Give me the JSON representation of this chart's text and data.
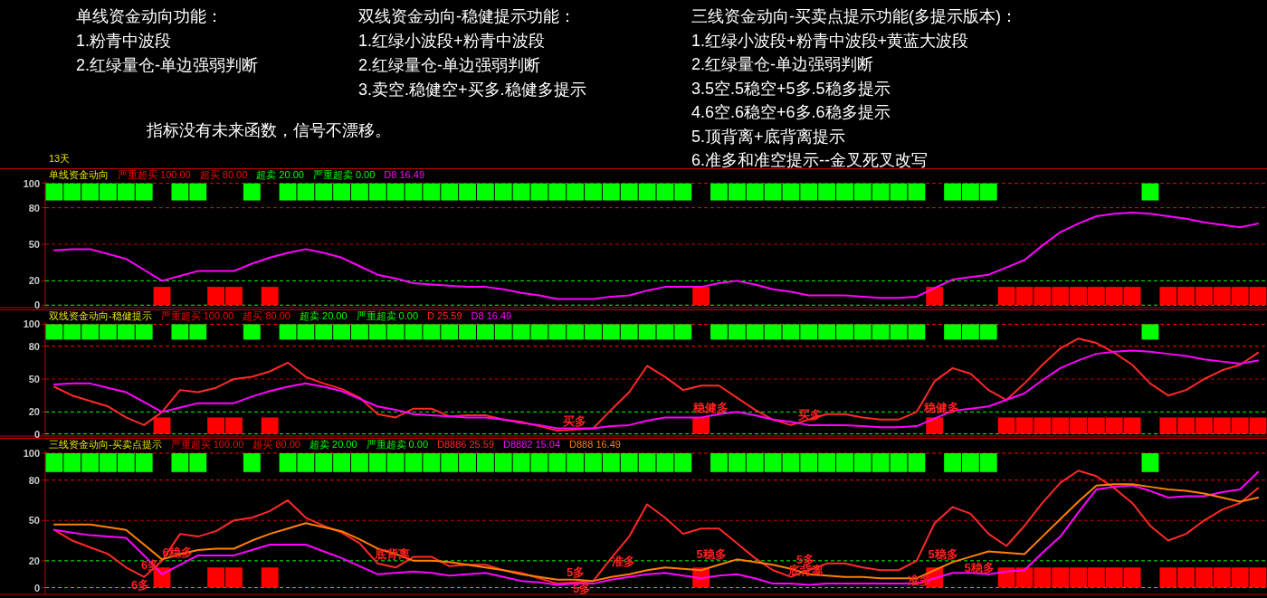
{
  "chart_data": [
    {
      "type": "other",
      "title": "单线资金动向功能：",
      "annotations": [
        "1.粉青中波段",
        "2.红绿量仓-单边强弱判断"
      ]
    },
    {
      "type": "other",
      "title": "双线资金动向-稳健提示功能：",
      "annotations": [
        "1.红绿小波段+粉青中波段",
        "2.红绿量仓-单边强弱判断",
        "3.卖空.稳健空+买多.稳健多提示"
      ]
    },
    {
      "type": "other",
      "title": "三线资金动向-买卖点提示功能(多提示版本)：",
      "annotations": [
        "1.红绿小波段+粉青中波段+黄蓝大波段",
        "2.红绿量仓-单边强弱判断",
        "3.5空.5稳空+5多.5稳多提示",
        "4.6空.6稳空+6多.6稳多提示",
        "5.顶背离+底背离提示",
        "6.准多和准空提示--金叉死叉改写"
      ]
    },
    {
      "type": "other",
      "annotations": [
        "指标没有未来函数，信号不漂移。"
      ]
    },
    {
      "type": "other",
      "annotations": [
        "13天"
      ]
    },
    {
      "type": "line",
      "title": "单线资金动向",
      "categories": [
        null,
        null,
        null,
        null,
        null,
        null,
        null,
        null,
        null,
        null,
        null,
        null,
        null,
        null,
        null,
        null,
        null,
        null,
        null,
        null,
        null,
        null,
        null,
        null,
        null,
        null,
        null,
        null,
        null,
        null,
        null,
        null,
        null,
        null,
        null,
        null,
        null,
        null,
        null,
        null,
        null,
        null,
        null,
        null,
        null,
        null,
        null,
        null,
        null,
        null,
        null,
        null,
        null,
        null,
        null,
        null,
        null,
        null,
        null,
        null,
        null,
        null,
        null,
        null,
        null,
        null,
        null,
        null
      ],
      "ylim": [
        -2,
        102
      ],
      "yticks": [
        0,
        20,
        50,
        80,
        100
      ],
      "ref_lines": [
        {
          "axis": "y",
          "value": 100,
          "label": "严重超买 100.00",
          "color": "#ff0000",
          "line_style": "dashed"
        },
        {
          "axis": "y",
          "value": 80,
          "label": "超买 80.00",
          "color": "#ff0000",
          "line_style": "dashed"
        },
        {
          "axis": "y",
          "value": 20,
          "label": "超卖 20.00",
          "color": "#00ff00",
          "line_style": "dashed"
        },
        {
          "axis": "y",
          "value": 0,
          "label": "严重超卖 0.00",
          "color": "#00ff00",
          "line_style": "dashed"
        },
        {
          "axis": "y",
          "value": 50,
          "color": "#c00000",
          "line_style": "dashed"
        }
      ],
      "series": [
        {
          "type": "bar",
          "color": "#00ff00",
          "values": [
            14,
            14,
            14,
            14,
            14,
            14,
            null,
            14,
            14,
            null,
            null,
            14,
            null,
            14,
            14,
            14,
            14,
            14,
            14,
            14,
            14,
            14,
            14,
            14,
            14,
            14,
            14,
            14,
            14,
            14,
            14,
            14,
            14,
            14,
            14,
            14,
            null,
            14,
            14,
            14,
            14,
            14,
            14,
            14,
            14,
            14,
            14,
            14,
            14,
            null,
            14,
            14,
            14,
            null,
            null,
            null,
            null,
            null,
            null,
            null,
            null,
            14,
            null,
            null,
            null,
            null,
            null,
            null
          ],
          "base": [
            86,
            86,
            86,
            86,
            86,
            86,
            null,
            86,
            86,
            null,
            null,
            86,
            null,
            86,
            86,
            86,
            86,
            86,
            86,
            86,
            86,
            86,
            86,
            86,
            86,
            86,
            86,
            86,
            86,
            86,
            86,
            86,
            86,
            86,
            86,
            86,
            null,
            86,
            86,
            86,
            86,
            86,
            86,
            86,
            86,
            86,
            86,
            86,
            86,
            null,
            86,
            86,
            86,
            null,
            null,
            null,
            null,
            null,
            null,
            null,
            null,
            86,
            null,
            null,
            null,
            null,
            null,
            null
          ]
        },
        {
          "type": "bar",
          "color": "#ff0000",
          "values": [
            null,
            null,
            null,
            null,
            null,
            null,
            15,
            null,
            null,
            15,
            15,
            null,
            15,
            null,
            null,
            null,
            null,
            null,
            null,
            null,
            null,
            null,
            null,
            null,
            null,
            null,
            null,
            null,
            null,
            null,
            null,
            null,
            null,
            null,
            null,
            null,
            15,
            null,
            null,
            null,
            null,
            null,
            null,
            null,
            null,
            null,
            null,
            null,
            null,
            15,
            null,
            null,
            null,
            15,
            15,
            15,
            15,
            15,
            15,
            15,
            15,
            null,
            15,
            15,
            15,
            15,
            15,
            15
          ],
          "base": [
            null,
            null,
            null,
            null,
            null,
            null,
            0,
            null,
            null,
            0,
            0,
            null,
            0,
            null,
            null,
            null,
            null,
            null,
            null,
            null,
            null,
            null,
            null,
            null,
            null,
            null,
            null,
            null,
            null,
            null,
            null,
            null,
            null,
            null,
            null,
            null,
            0,
            null,
            null,
            null,
            null,
            null,
            null,
            null,
            null,
            null,
            null,
            null,
            null,
            0,
            null,
            null,
            null,
            0,
            0,
            0,
            0,
            0,
            0,
            0,
            0,
            null,
            0,
            0,
            0,
            0,
            0,
            0
          ]
        },
        {
          "name": "D8 16.49",
          "color": "#ff00ff",
          "values": [
            45,
            46,
            46,
            42,
            38,
            29,
            20,
            24,
            28,
            28,
            28,
            34,
            39,
            43,
            46,
            43,
            39,
            32,
            25,
            22,
            18,
            17,
            16,
            15,
            15,
            13,
            10,
            8,
            5,
            5,
            5,
            7,
            8,
            12,
            15,
            15,
            15,
            18,
            20,
            17,
            13,
            11,
            8,
            8,
            8,
            7,
            6,
            6,
            7,
            14,
            21,
            23,
            25,
            31,
            37,
            49,
            60,
            67,
            73,
            75,
            76,
            75,
            73,
            71,
            68,
            66,
            64,
            67
          ]
        }
      ]
    },
    {
      "type": "line",
      "title": "双线资金动向-稳健提示",
      "annotations": [
        "买多",
        "稳健多",
        "买多",
        "稳健多"
      ],
      "categories": [
        null,
        null,
        null,
        null,
        null,
        null,
        null,
        null,
        null,
        null,
        null,
        null,
        null,
        null,
        null,
        null,
        null,
        null,
        null,
        null,
        null,
        null,
        null,
        null,
        null,
        null,
        null,
        null,
        null,
        null,
        null,
        null,
        null,
        null,
        null,
        null,
        null,
        null,
        null,
        null,
        null,
        null,
        null,
        null,
        null,
        null,
        null,
        null,
        null,
        null,
        null,
        null,
        null,
        null,
        null,
        null,
        null,
        null,
        null,
        null,
        null,
        null,
        null,
        null,
        null,
        null,
        null,
        null
      ],
      "ylim": [
        -2,
        102
      ],
      "yticks": [
        0,
        20,
        50,
        80,
        100
      ],
      "ref_lines": [
        {
          "axis": "y",
          "value": 100,
          "label": "严重超买 100.00",
          "color": "#ff0000",
          "line_style": "dashed"
        },
        {
          "axis": "y",
          "value": 80,
          "label": "超买 80.00",
          "color": "#ff0000",
          "line_style": "dashed"
        },
        {
          "axis": "y",
          "value": 20,
          "label": "超卖 20.00",
          "color": "#00ff00",
          "line_style": "dashed"
        },
        {
          "axis": "y",
          "value": 0,
          "label": "严重超卖 0.00",
          "color": "#00ff00",
          "line_style": "dashed"
        },
        {
          "axis": "y",
          "value": 50,
          "color": "#c00000",
          "line_style": "dashed"
        }
      ],
      "series": [
        {
          "type": "bar",
          "color": "#00ff00",
          "values": [
            14,
            14,
            14,
            14,
            14,
            14,
            null,
            14,
            14,
            null,
            null,
            14,
            null,
            14,
            14,
            14,
            14,
            14,
            14,
            14,
            14,
            14,
            14,
            14,
            14,
            14,
            14,
            14,
            14,
            14,
            14,
            14,
            14,
            14,
            14,
            14,
            null,
            14,
            14,
            14,
            14,
            14,
            14,
            14,
            14,
            14,
            14,
            14,
            14,
            null,
            14,
            14,
            14,
            null,
            null,
            null,
            null,
            null,
            null,
            null,
            null,
            14,
            null,
            null,
            null,
            null,
            null,
            null
          ],
          "base": [
            86,
            86,
            86,
            86,
            86,
            86,
            null,
            86,
            86,
            null,
            null,
            86,
            null,
            86,
            86,
            86,
            86,
            86,
            86,
            86,
            86,
            86,
            86,
            86,
            86,
            86,
            86,
            86,
            86,
            86,
            86,
            86,
            86,
            86,
            86,
            86,
            null,
            86,
            86,
            86,
            86,
            86,
            86,
            86,
            86,
            86,
            86,
            86,
            86,
            null,
            86,
            86,
            86,
            null,
            null,
            null,
            null,
            null,
            null,
            null,
            null,
            86,
            null,
            null,
            null,
            null,
            null,
            null
          ]
        },
        {
          "type": "bar",
          "color": "#ff0000",
          "values": [
            null,
            null,
            null,
            null,
            null,
            null,
            15,
            null,
            null,
            15,
            15,
            null,
            15,
            null,
            null,
            null,
            null,
            null,
            null,
            null,
            null,
            null,
            null,
            null,
            null,
            null,
            null,
            null,
            null,
            null,
            null,
            null,
            null,
            null,
            null,
            null,
            15,
            null,
            null,
            null,
            null,
            null,
            null,
            null,
            null,
            null,
            null,
            null,
            null,
            15,
            null,
            null,
            null,
            15,
            15,
            15,
            15,
            15,
            15,
            15,
            15,
            null,
            15,
            15,
            15,
            15,
            15,
            15
          ],
          "base": [
            null,
            null,
            null,
            null,
            null,
            null,
            0,
            null,
            null,
            0,
            0,
            null,
            0,
            null,
            null,
            null,
            null,
            null,
            null,
            null,
            null,
            null,
            null,
            null,
            null,
            null,
            null,
            null,
            null,
            null,
            null,
            null,
            null,
            null,
            null,
            null,
            0,
            null,
            null,
            null,
            null,
            null,
            null,
            null,
            null,
            null,
            null,
            null,
            null,
            0,
            null,
            null,
            null,
            0,
            0,
            0,
            0,
            0,
            0,
            0,
            0,
            null,
            0,
            0,
            0,
            0,
            0,
            0
          ]
        },
        {
          "name": "D 25.59",
          "color": "#ff2828",
          "values": [
            43,
            35,
            30,
            25,
            15,
            8,
            20,
            40,
            38,
            42,
            50,
            52,
            57,
            65,
            52,
            46,
            41,
            33,
            18,
            15,
            23,
            23,
            16,
            17,
            17,
            13,
            11,
            7,
            3,
            4,
            5,
            22,
            38,
            62,
            52,
            40,
            44,
            44,
            33,
            22,
            13,
            8,
            13,
            18,
            18,
            15,
            13,
            13,
            20,
            48,
            60,
            55,
            40,
            31,
            46,
            63,
            78,
            87,
            83,
            74,
            63,
            46,
            35,
            40,
            50,
            58,
            63,
            74
          ]
        },
        {
          "name": "D8 16.49",
          "color": "#ff00ff",
          "values": [
            45,
            46,
            46,
            42,
            38,
            29,
            20,
            24,
            28,
            28,
            28,
            34,
            39,
            43,
            46,
            43,
            39,
            32,
            25,
            22,
            18,
            17,
            16,
            15,
            15,
            13,
            10,
            8,
            5,
            5,
            5,
            7,
            8,
            12,
            15,
            15,
            15,
            18,
            20,
            17,
            13,
            11,
            8,
            8,
            8,
            7,
            6,
            6,
            7,
            14,
            21,
            23,
            25,
            31,
            37,
            49,
            60,
            67,
            73,
            75,
            76,
            75,
            73,
            71,
            68,
            66,
            64,
            67
          ]
        }
      ]
    },
    {
      "type": "line",
      "title": "三线资金动向-买卖点提示",
      "annotations": [
        "6多",
        "6稳多",
        "6多",
        "底背离",
        "5多",
        "5多",
        "准多",
        "5稳多",
        "5多",
        "底背离",
        "5稳多",
        "准多",
        "5稳多"
      ],
      "categories": [
        null,
        null,
        null,
        null,
        null,
        null,
        null,
        null,
        null,
        null,
        null,
        null,
        null,
        null,
        null,
        null,
        null,
        null,
        null,
        null,
        null,
        null,
        null,
        null,
        null,
        null,
        null,
        null,
        null,
        null,
        null,
        null,
        null,
        null,
        null,
        null,
        null,
        null,
        null,
        null,
        null,
        null,
        null,
        null,
        null,
        null,
        null,
        null,
        null,
        null,
        null,
        null,
        null,
        null,
        null,
        null,
        null,
        null,
        null,
        null,
        null,
        null,
        null,
        null,
        null,
        null,
        null,
        null
      ],
      "ylim": [
        -5,
        102
      ],
      "yticks": [
        0,
        20,
        50,
        80,
        100
      ],
      "ref_lines": [
        {
          "axis": "y",
          "value": 100,
          "label": "严重超买 100.00",
          "color": "#ff0000",
          "line_style": "dashed"
        },
        {
          "axis": "y",
          "value": 80,
          "label": "超买 80.00",
          "color": "#ff0000",
          "line_style": "dashed"
        },
        {
          "axis": "y",
          "value": 20,
          "label": "超卖 20.00",
          "color": "#00ff00",
          "line_style": "dashed"
        },
        {
          "axis": "y",
          "value": 0,
          "label": "严重超卖 0.00",
          "color": "#00ff00",
          "line_style": "dashed"
        },
        {
          "axis": "y",
          "value": 50,
          "color": "#c00000",
          "line_style": "dashed"
        }
      ],
      "series": [
        {
          "type": "bar",
          "color": "#00ff00",
          "values": [
            14,
            14,
            14,
            14,
            14,
            14,
            null,
            14,
            14,
            null,
            null,
            14,
            null,
            14,
            14,
            14,
            14,
            14,
            14,
            14,
            14,
            14,
            14,
            14,
            14,
            14,
            14,
            14,
            14,
            14,
            14,
            14,
            14,
            14,
            14,
            14,
            null,
            14,
            14,
            14,
            14,
            14,
            14,
            14,
            14,
            14,
            14,
            14,
            14,
            null,
            14,
            14,
            14,
            null,
            null,
            null,
            null,
            null,
            null,
            null,
            null,
            14,
            null,
            null,
            null,
            null,
            null,
            null
          ],
          "base": [
            86,
            86,
            86,
            86,
            86,
            86,
            null,
            86,
            86,
            null,
            null,
            86,
            null,
            86,
            86,
            86,
            86,
            86,
            86,
            86,
            86,
            86,
            86,
            86,
            86,
            86,
            86,
            86,
            86,
            86,
            86,
            86,
            86,
            86,
            86,
            86,
            null,
            86,
            86,
            86,
            86,
            86,
            86,
            86,
            86,
            86,
            86,
            86,
            86,
            null,
            86,
            86,
            86,
            null,
            null,
            null,
            null,
            null,
            null,
            null,
            null,
            86,
            null,
            null,
            null,
            null,
            null,
            null
          ]
        },
        {
          "type": "bar",
          "color": "#ff0000",
          "values": [
            null,
            null,
            null,
            null,
            null,
            null,
            15,
            null,
            null,
            15,
            15,
            null,
            15,
            null,
            null,
            null,
            null,
            null,
            null,
            null,
            null,
            null,
            null,
            null,
            null,
            null,
            null,
            null,
            null,
            null,
            null,
            null,
            null,
            null,
            null,
            null,
            15,
            null,
            null,
            null,
            null,
            null,
            null,
            null,
            null,
            null,
            null,
            null,
            null,
            15,
            null,
            null,
            null,
            15,
            15,
            15,
            15,
            15,
            15,
            15,
            15,
            null,
            15,
            15,
            15,
            15,
            15,
            15
          ],
          "base": [
            null,
            null,
            null,
            null,
            null,
            null,
            0,
            null,
            null,
            0,
            0,
            null,
            0,
            null,
            null,
            null,
            null,
            null,
            null,
            null,
            null,
            null,
            null,
            null,
            null,
            null,
            null,
            null,
            null,
            null,
            null,
            null,
            null,
            null,
            null,
            null,
            0,
            null,
            null,
            null,
            null,
            null,
            null,
            null,
            null,
            null,
            null,
            null,
            null,
            0,
            null,
            null,
            null,
            0,
            0,
            0,
            0,
            0,
            0,
            0,
            0,
            null,
            0,
            0,
            0,
            0,
            0,
            0
          ]
        },
        {
          "name": "D8886 25.59",
          "color": "#ff2828",
          "values": [
            43,
            35,
            30,
            25,
            15,
            8,
            20,
            40,
            38,
            42,
            50,
            52,
            57,
            65,
            52,
            46,
            41,
            33,
            18,
            15,
            23,
            23,
            16,
            17,
            17,
            13,
            11,
            7,
            3,
            4,
            5,
            22,
            38,
            62,
            52,
            40,
            44,
            44,
            33,
            22,
            13,
            8,
            13,
            18,
            18,
            15,
            13,
            13,
            20,
            48,
            60,
            55,
            40,
            31,
            46,
            63,
            78,
            87,
            83,
            74,
            63,
            46,
            35,
            40,
            50,
            58,
            63,
            74
          ]
        },
        {
          "name": "D8882 15.04",
          "color": "#ff00ff",
          "values": [
            43,
            41,
            39,
            38,
            37,
            24,
            10,
            17,
            24,
            24,
            24,
            28,
            32,
            32,
            32,
            27,
            22,
            16,
            10,
            11,
            12,
            11,
            9,
            10,
            11,
            8,
            5,
            4,
            2,
            3,
            3,
            6,
            8,
            10,
            11,
            9,
            7,
            9,
            10,
            7,
            3,
            3,
            2,
            3,
            3,
            3,
            3,
            3,
            3,
            7,
            11,
            11,
            10,
            12,
            13,
            26,
            38,
            56,
            73,
            75,
            76,
            72,
            67,
            68,
            68,
            71,
            73,
            86
          ]
        },
        {
          "name": "D888 16.49",
          "color": "#ff8000",
          "values": [
            47,
            47,
            47,
            45,
            43,
            32,
            21,
            25,
            28,
            29,
            29,
            35,
            40,
            44,
            48,
            45,
            42,
            36,
            29,
            25,
            20,
            20,
            19,
            17,
            15,
            13,
            10,
            8,
            6,
            6,
            5,
            8,
            10,
            13,
            15,
            14,
            13,
            17,
            21,
            19,
            17,
            14,
            10,
            9,
            8,
            8,
            7,
            7,
            7,
            13,
            19,
            23,
            27,
            26,
            25,
            38,
            51,
            64,
            76,
            77,
            77,
            75,
            73,
            72,
            70,
            67,
            64,
            67
          ]
        }
      ]
    }
  ]
}
